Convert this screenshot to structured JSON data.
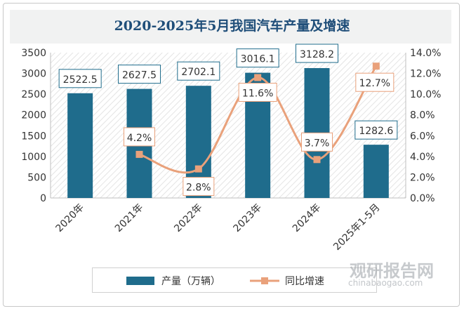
{
  "chart_data": {
    "type": "bar",
    "title": "2020-2025年5月我国汽车产量及增速",
    "categories": [
      "2020年",
      "2021年",
      "2022年",
      "2023年",
      "2024年",
      "2025年1-5月"
    ],
    "series": [
      {
        "name": "产量（万辆）",
        "type": "bar",
        "axis": "left",
        "values": [
          2522.5,
          2627.5,
          2702.1,
          3016.1,
          3128.2,
          1282.6
        ],
        "labels": [
          "2522.5",
          "2627.5",
          "2702.1",
          "3016.1",
          "3128.2",
          "1282.6"
        ]
      },
      {
        "name": "同比增速",
        "type": "line",
        "axis": "right",
        "values": [
          null,
          4.2,
          2.8,
          11.6,
          3.7,
          12.7
        ],
        "labels": [
          "",
          "4.2%",
          "2.8%",
          "11.6%",
          "3.7%",
          "12.7%"
        ]
      }
    ],
    "y_left": {
      "min": 0,
      "max": 3500,
      "ticks": [
        "0",
        "500",
        "1000",
        "1500",
        "2000",
        "2500",
        "3000",
        "3500"
      ]
    },
    "y_right": {
      "min": 0,
      "max": 14,
      "ticks": [
        "0.0%",
        "2.0%",
        "4.0%",
        "6.0%",
        "8.0%",
        "10.0%",
        "12.0%",
        "14.0%"
      ]
    },
    "legend_position": "bottom",
    "grid": false,
    "colors": {
      "bar": "#1f6c8c",
      "line": "#e9a17b",
      "title": "#1f4e79"
    }
  },
  "watermark": {
    "text": "观研报告网",
    "url": "chinabaogao.com"
  }
}
